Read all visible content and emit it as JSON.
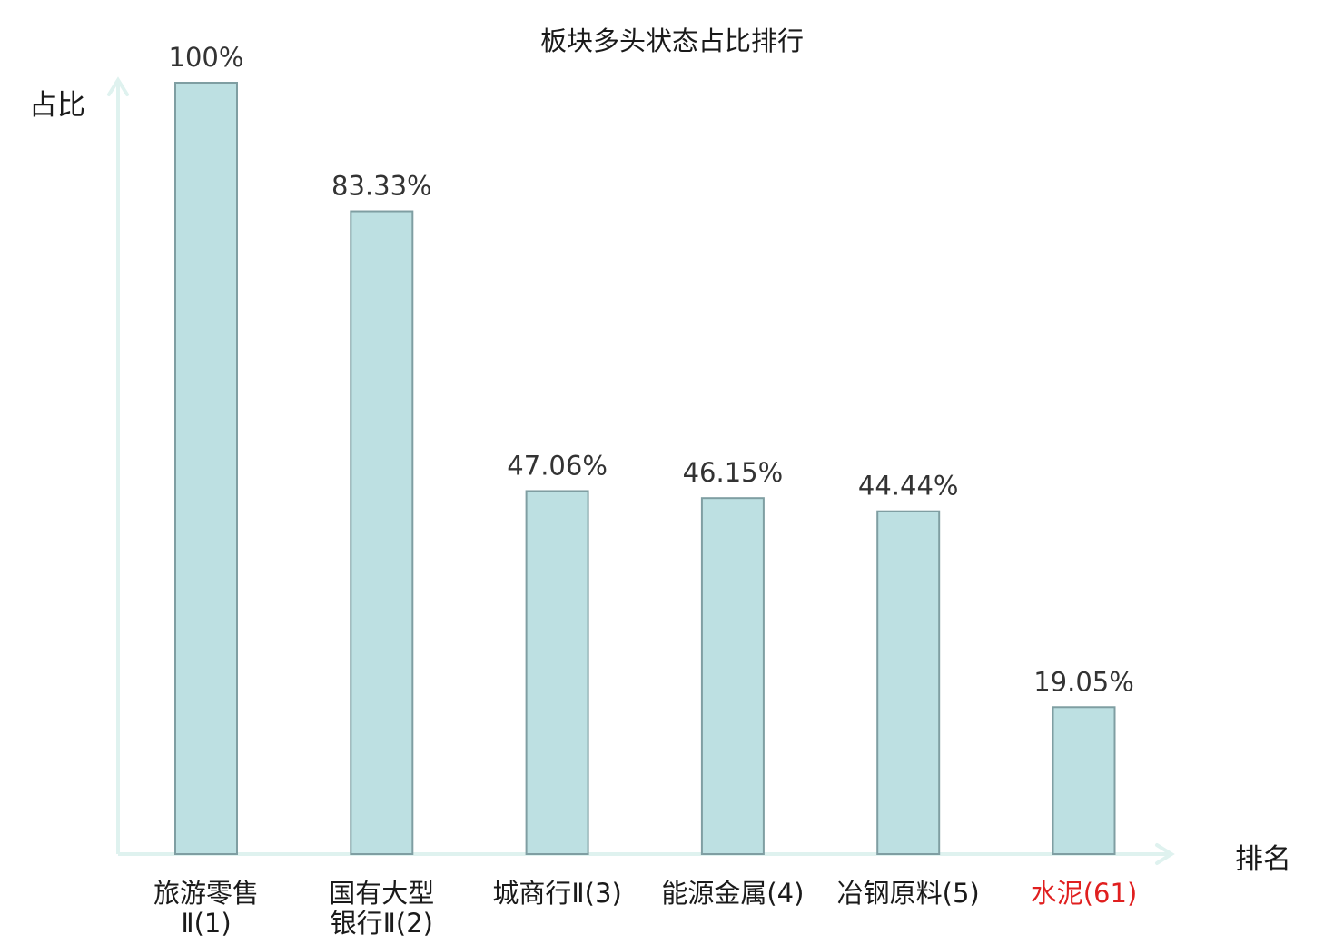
{
  "chart_data": {
    "type": "bar",
    "title": "板块多头状态占比排行",
    "ylabel": "占比",
    "xlabel": "排名",
    "ylim": [
      0,
      100
    ],
    "grid": false,
    "categories": [
      {
        "lines": [
          "旅游零售",
          "Ⅱ(1)"
        ],
        "highlight": false
      },
      {
        "lines": [
          "国有大型",
          "银行Ⅱ(2)"
        ],
        "highlight": false
      },
      {
        "lines": [
          "城商行Ⅱ(3)"
        ],
        "highlight": false
      },
      {
        "lines": [
          "能源金属(4)"
        ],
        "highlight": false
      },
      {
        "lines": [
          "冶钢原料(5)"
        ],
        "highlight": false
      },
      {
        "lines": [
          "水泥(61)"
        ],
        "highlight": true
      }
    ],
    "values": [
      100,
      83.33,
      47.06,
      46.15,
      44.44,
      19.05
    ],
    "value_labels": [
      "100%",
      "83.33%",
      "47.06%",
      "46.15%",
      "44.44%",
      "19.05%"
    ]
  },
  "colors": {
    "bar_fill": "#bde0e2",
    "bar_stroke": "#7f9ea2",
    "axis": "#dff2ef",
    "text": "#1a1a1a",
    "value_text": "#333333",
    "highlight": "#e01f1f"
  }
}
